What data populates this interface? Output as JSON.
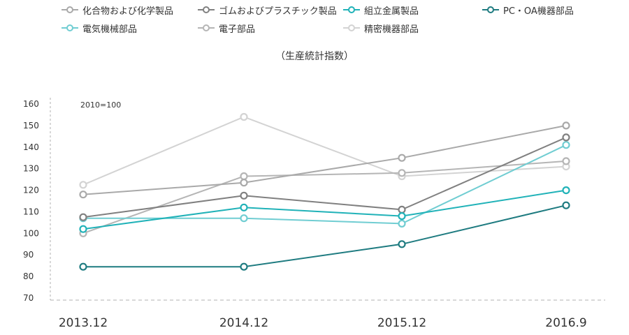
{
  "chart_data": {
    "type": "line",
    "subtitle": "（生産統計指数）",
    "annotation": "2010=100",
    "categories": [
      "2013.12",
      "2014.12",
      "2015.12",
      "2016.9"
    ],
    "yticks": [
      70,
      80,
      90,
      100,
      110,
      120,
      130,
      140,
      150,
      160
    ],
    "ylim": [
      70,
      160
    ],
    "grid": false,
    "legend_position": "top",
    "series": [
      {
        "name": "化合物および化学製品",
        "color": "#a9a9a9",
        "values": [
          118,
          123.5,
          135,
          150
        ]
      },
      {
        "name": "ゴムおよびプラスチック製品",
        "color": "#808080",
        "values": [
          107.5,
          117.5,
          111,
          144.5
        ]
      },
      {
        "name": "組立金属製品",
        "color": "#20b2b8",
        "values": [
          102,
          112,
          108,
          120
        ]
      },
      {
        "name": "PC・OA機器部品",
        "color": "#1e7b80",
        "values": [
          84.5,
          84.5,
          95,
          113
        ]
      },
      {
        "name": "電気機械部品",
        "color": "#70cdd2",
        "values": [
          107,
          107,
          104.5,
          141
        ]
      },
      {
        "name": "電子部品",
        "color": "#b5b5b5",
        "values": [
          100,
          126.5,
          128,
          133.5
        ]
      },
      {
        "name": "精密機器部品",
        "color": "#d3d3d3",
        "values": [
          122.5,
          154,
          126.5,
          131
        ]
      }
    ]
  }
}
